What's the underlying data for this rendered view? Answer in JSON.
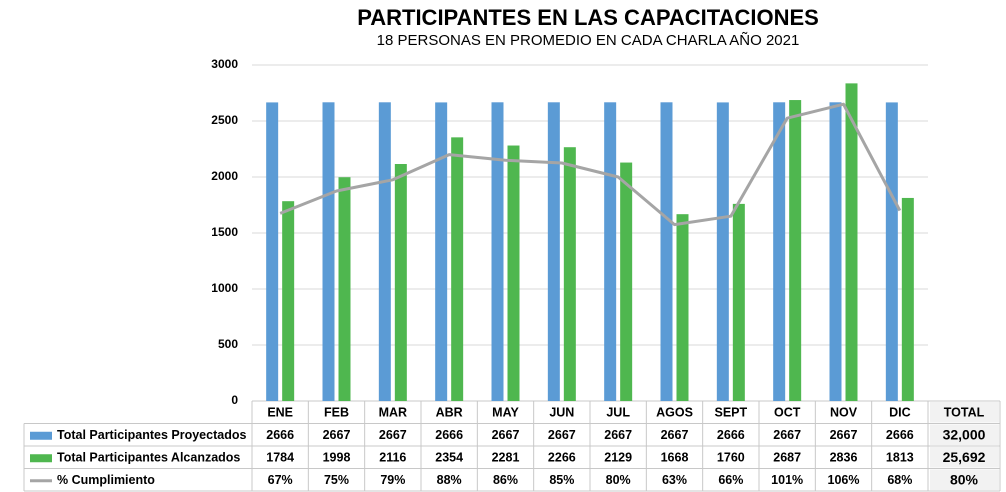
{
  "chart_data": {
    "type": "bar",
    "title": "PARTICIPANTES EN LAS CAPACITACIONES",
    "subtitle": "18 PERSONAS EN PROMEDIO EN CADA CHARLA AÑO 2021",
    "categories": [
      "ENE",
      "FEB",
      "MAR",
      "ABR",
      "MAY",
      "JUN",
      "JUL",
      "AGOS",
      "SEPT",
      "OCT",
      "NOV",
      "DIC"
    ],
    "total_header": "TOTAL",
    "series": [
      {
        "name": "Total Participantes Proyectados",
        "color": "#5b9bd5",
        "values": [
          2666,
          2667,
          2667,
          2666,
          2667,
          2667,
          2667,
          2667,
          2666,
          2667,
          2667,
          2666
        ],
        "total": "32,000"
      },
      {
        "name": "Total Participantes Alcanzados",
        "color": "#4fb74f",
        "values": [
          1784,
          1998,
          2116,
          2354,
          2281,
          2266,
          2129,
          1668,
          1760,
          2687,
          2836,
          1813
        ],
        "total": "25,692"
      },
      {
        "name": "% Cumplimiento",
        "color": "#a5a5a5",
        "type": "line",
        "axis": "y2",
        "values": [
          67,
          75,
          79,
          88,
          86,
          85,
          80,
          63,
          66,
          101,
          106,
          68
        ],
        "value_labels": [
          "67%",
          "75%",
          "79%",
          "88%",
          "86%",
          "85%",
          "80%",
          "63%",
          "66%",
          "101%",
          "106%",
          "68%"
        ],
        "total": "80%"
      }
    ],
    "ylim": [
      0,
      3000
    ],
    "yticks": [
      0,
      500,
      1000,
      1500,
      2000,
      2500,
      3000
    ],
    "y2lim": [
      0,
      120
    ],
    "grid": true
  }
}
